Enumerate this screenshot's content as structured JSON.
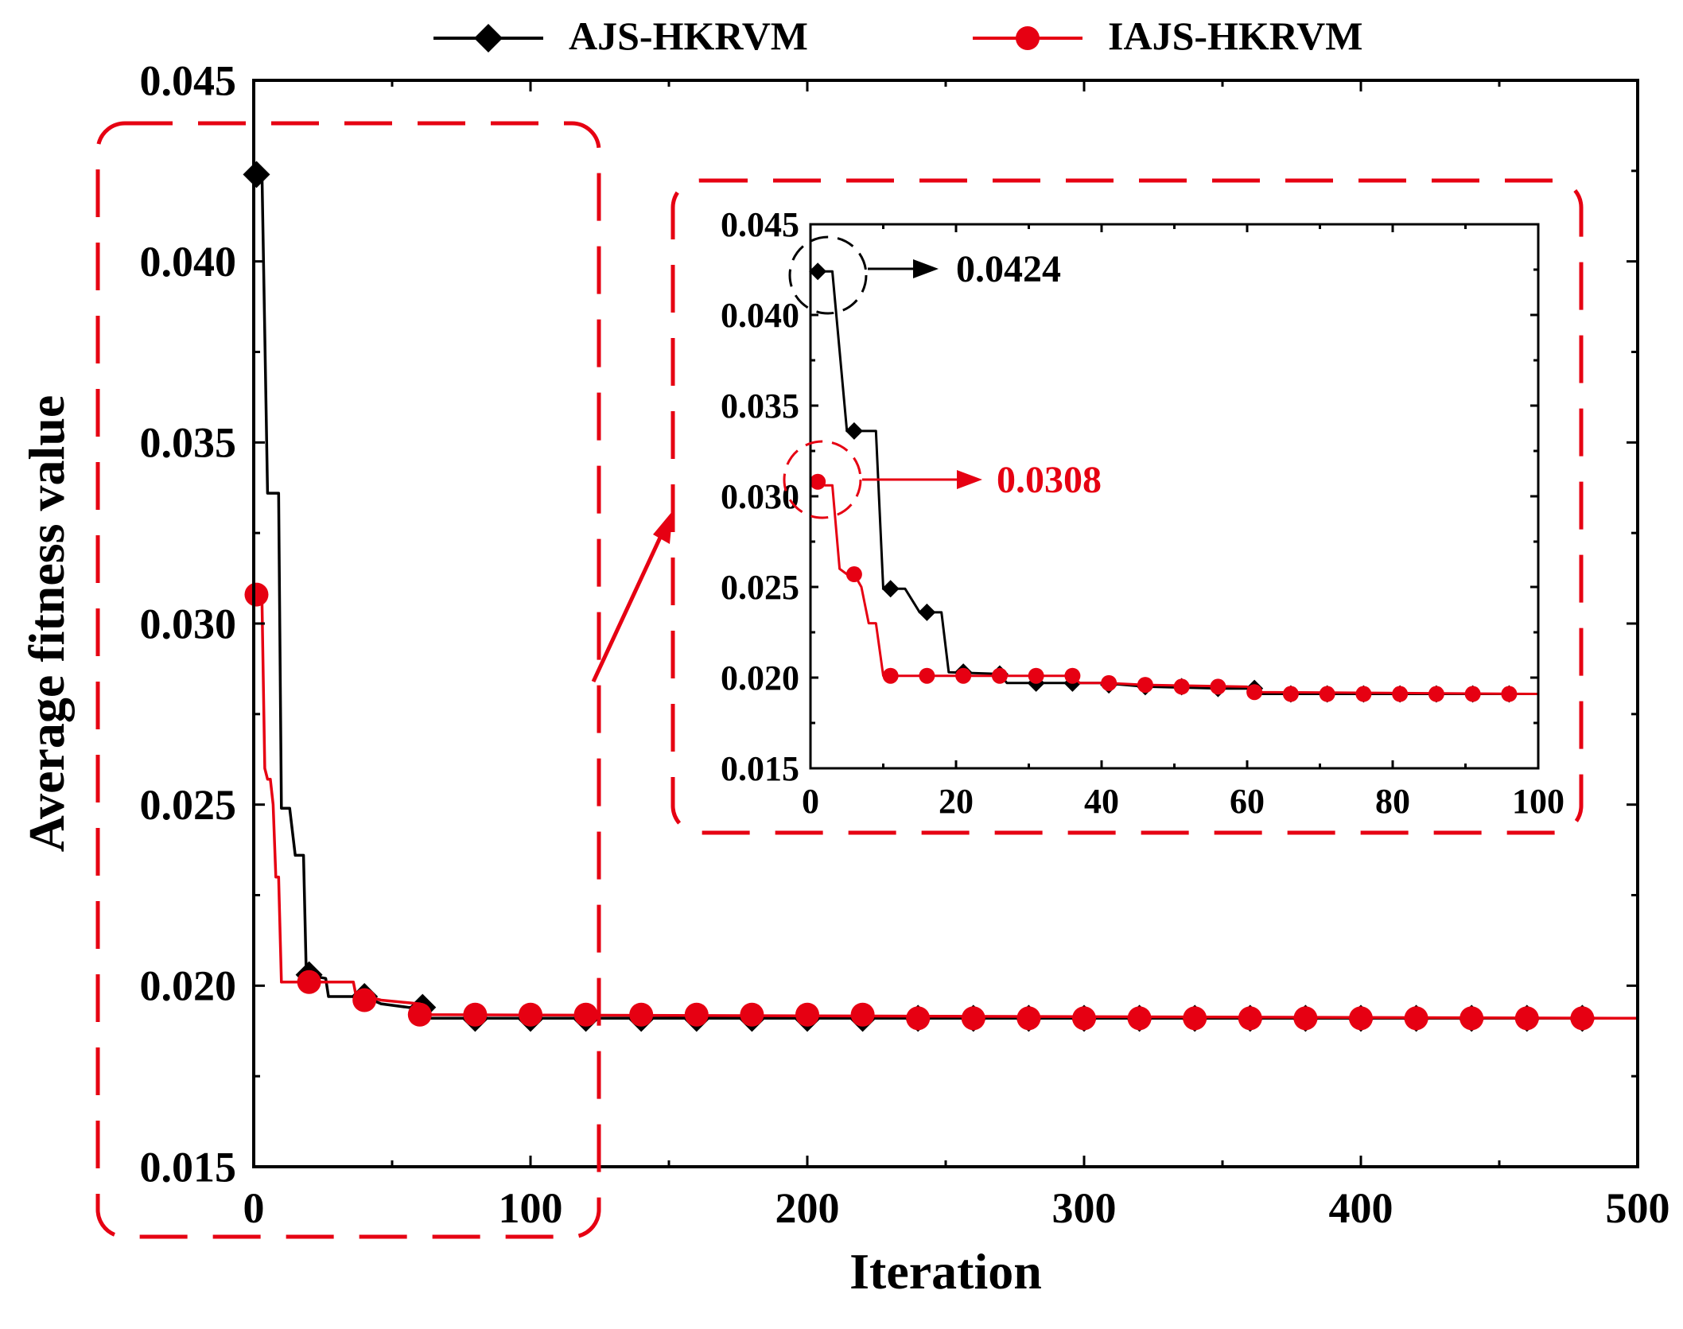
{
  "chart_data": [
    {
      "id": "main",
      "type": "line",
      "xlabel": "Iteration",
      "ylabel": "Average fitness value",
      "xlim": [
        0,
        500
      ],
      "ylim": [
        0.015,
        0.045
      ],
      "x_ticks": [
        0,
        100,
        200,
        300,
        400,
        500
      ],
      "x_tick_labels": [
        "0",
        "100",
        "200",
        "300",
        "400",
        "500"
      ],
      "y_ticks": [
        0.015,
        0.02,
        0.025,
        0.03,
        0.035,
        0.04,
        0.045
      ],
      "y_tick_labels": [
        "0.015",
        "0.020",
        "0.025",
        "0.030",
        "0.035",
        "0.040",
        "0.045"
      ],
      "legend": [
        "AJS-HKRVM",
        "IAJS-HKRVM"
      ],
      "legend_position": "top-center",
      "series": [
        {
          "name": "AJS-HKRVM",
          "color": "#000000",
          "marker": "diamond",
          "line": [
            [
              1,
              0.0424
            ],
            [
              3,
              0.0424
            ],
            [
              5,
              0.0336
            ],
            [
              9,
              0.0336
            ],
            [
              10,
              0.0249
            ],
            [
              13,
              0.0249
            ],
            [
              15,
              0.0236
            ],
            [
              18,
              0.0236
            ],
            [
              19,
              0.0203
            ],
            [
              26,
              0.0202
            ],
            [
              27,
              0.0197
            ],
            [
              36,
              0.0197
            ],
            [
              40,
              0.0197
            ],
            [
              46,
              0.0195
            ],
            [
              56,
              0.0194
            ],
            [
              61,
              0.0194
            ],
            [
              62,
              0.0191
            ],
            [
              500,
              0.0191
            ]
          ],
          "markers": [
            [
              1,
              0.0424
            ],
            [
              20,
              0.0203
            ],
            [
              40,
              0.0197
            ],
            [
              61,
              0.0194
            ],
            [
              80,
              0.0191
            ],
            [
              100,
              0.0191
            ],
            [
              120,
              0.0191
            ],
            [
              140,
              0.0191
            ],
            [
              160,
              0.0191
            ],
            [
              180,
              0.0191
            ],
            [
              200,
              0.0191
            ],
            [
              220,
              0.0191
            ],
            [
              240,
              0.0191
            ],
            [
              260,
              0.0191
            ],
            [
              280,
              0.0191
            ],
            [
              300,
              0.0191
            ],
            [
              320,
              0.0191
            ],
            [
              340,
              0.0191
            ],
            [
              360,
              0.0191
            ],
            [
              380,
              0.0191
            ],
            [
              400,
              0.0191
            ],
            [
              420,
              0.0191
            ],
            [
              440,
              0.0191
            ],
            [
              460,
              0.0191
            ],
            [
              480,
              0.0191
            ]
          ]
        },
        {
          "name": "IAJS-HKRVM",
          "color": "#e60012",
          "marker": "circle",
          "line": [
            [
              1,
              0.0308
            ],
            [
              2,
              0.0306
            ],
            [
              3,
              0.0306
            ],
            [
              4,
              0.026
            ],
            [
              5,
              0.0257
            ],
            [
              6,
              0.0257
            ],
            [
              7,
              0.025
            ],
            [
              8,
              0.023
            ],
            [
              9,
              0.023
            ],
            [
              10,
              0.0201
            ],
            [
              36,
              0.0201
            ],
            [
              37,
              0.0197
            ],
            [
              41,
              0.0197
            ],
            [
              46,
              0.0196
            ],
            [
              60,
              0.0195
            ],
            [
              61,
              0.0192
            ],
            [
              500,
              0.0191
            ]
          ],
          "markers": [
            [
              1,
              0.0308
            ],
            [
              20,
              0.0201
            ],
            [
              40,
              0.0196
            ],
            [
              60,
              0.0192
            ],
            [
              80,
              0.0192
            ],
            [
              100,
              0.0192
            ],
            [
              120,
              0.0192
            ],
            [
              140,
              0.0192
            ],
            [
              160,
              0.0192
            ],
            [
              180,
              0.0192
            ],
            [
              200,
              0.0192
            ],
            [
              220,
              0.0192
            ],
            [
              240,
              0.0191
            ],
            [
              260,
              0.0191
            ],
            [
              280,
              0.0191
            ],
            [
              300,
              0.0191
            ],
            [
              320,
              0.0191
            ],
            [
              340,
              0.0191
            ],
            [
              360,
              0.0191
            ],
            [
              380,
              0.0191
            ],
            [
              400,
              0.0191
            ],
            [
              420,
              0.0191
            ],
            [
              440,
              0.0191
            ],
            [
              460,
              0.0191
            ],
            [
              480,
              0.0191
            ]
          ]
        }
      ]
    },
    {
      "id": "inset",
      "type": "line",
      "xlabel": "",
      "ylabel": "",
      "xlim": [
        0,
        100
      ],
      "ylim": [
        0.015,
        0.045
      ],
      "x_ticks": [
        0,
        20,
        40,
        60,
        80,
        100
      ],
      "x_tick_labels": [
        "0",
        "20",
        "40",
        "60",
        "80",
        "100"
      ],
      "y_ticks": [
        0.015,
        0.02,
        0.025,
        0.03,
        0.035,
        0.04,
        0.045
      ],
      "y_tick_labels": [
        "0.015",
        "0.020",
        "0.025",
        "0.030",
        "0.035",
        "0.040",
        "0.045"
      ],
      "series": [
        {
          "name": "AJS-HKRVM",
          "color": "#000000",
          "marker": "diamond",
          "line": [
            [
              1,
              0.0424
            ],
            [
              3,
              0.0424
            ],
            [
              5,
              0.0336
            ],
            [
              9,
              0.0336
            ],
            [
              10,
              0.0249
            ],
            [
              13,
              0.0249
            ],
            [
              15,
              0.0236
            ],
            [
              18,
              0.0236
            ],
            [
              19,
              0.0203
            ],
            [
              26,
              0.0202
            ],
            [
              27,
              0.0197
            ],
            [
              36,
              0.0197
            ],
            [
              40,
              0.0197
            ],
            [
              46,
              0.0195
            ],
            [
              56,
              0.0194
            ],
            [
              61,
              0.0194
            ],
            [
              62,
              0.0191
            ],
            [
              100,
              0.0191
            ]
          ],
          "markers": [
            [
              1,
              0.0424
            ],
            [
              6,
              0.0336
            ],
            [
              11,
              0.0249
            ],
            [
              16,
              0.0236
            ],
            [
              21,
              0.0203
            ],
            [
              26,
              0.0202
            ],
            [
              31,
              0.0197
            ],
            [
              36,
              0.0197
            ],
            [
              41,
              0.0196
            ],
            [
              46,
              0.0195
            ],
            [
              51,
              0.0195
            ],
            [
              56,
              0.0194
            ],
            [
              61,
              0.0194
            ],
            [
              66,
              0.0191
            ],
            [
              71,
              0.0191
            ],
            [
              76,
              0.0191
            ],
            [
              81,
              0.0191
            ],
            [
              86,
              0.0191
            ],
            [
              91,
              0.0191
            ],
            [
              96,
              0.0191
            ]
          ]
        },
        {
          "name": "IAJS-HKRVM",
          "color": "#e60012",
          "marker": "circle",
          "line": [
            [
              1,
              0.0308
            ],
            [
              2,
              0.0306
            ],
            [
              3,
              0.0306
            ],
            [
              4,
              0.026
            ],
            [
              5,
              0.0257
            ],
            [
              6,
              0.0257
            ],
            [
              7,
              0.025
            ],
            [
              8,
              0.023
            ],
            [
              9,
              0.023
            ],
            [
              10,
              0.0201
            ],
            [
              36,
              0.0201
            ],
            [
              37,
              0.0197
            ],
            [
              41,
              0.0197
            ],
            [
              46,
              0.0196
            ],
            [
              60,
              0.0195
            ],
            [
              61,
              0.0192
            ],
            [
              100,
              0.0191
            ]
          ],
          "markers": [
            [
              1,
              0.0308
            ],
            [
              6,
              0.0257
            ],
            [
              11,
              0.0201
            ],
            [
              16,
              0.0201
            ],
            [
              21,
              0.0201
            ],
            [
              26,
              0.0201
            ],
            [
              31,
              0.0201
            ],
            [
              36,
              0.0201
            ],
            [
              41,
              0.0197
            ],
            [
              46,
              0.0196
            ],
            [
              51,
              0.0195
            ],
            [
              56,
              0.0195
            ],
            [
              61,
              0.0192
            ],
            [
              66,
              0.0191
            ],
            [
              71,
              0.0191
            ],
            [
              76,
              0.0191
            ],
            [
              81,
              0.0191
            ],
            [
              86,
              0.0191
            ],
            [
              91,
              0.0191
            ],
            [
              96,
              0.0191
            ]
          ]
        }
      ],
      "annotations": [
        {
          "text": "0.0424",
          "x": 1,
          "y": 0.0424,
          "color": "#000000"
        },
        {
          "text": "0.0308",
          "x": 1,
          "y": 0.0308,
          "color": "#e60012"
        }
      ]
    }
  ],
  "colors": {
    "highlight_box": "#e60012",
    "axis": "#000000"
  }
}
